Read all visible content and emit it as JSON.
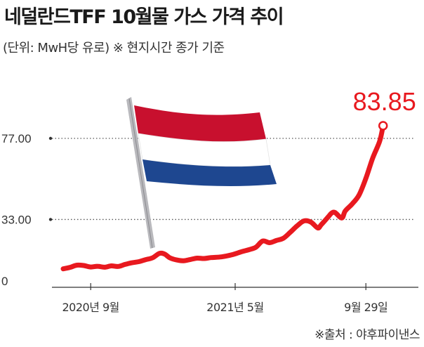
{
  "title": "네덜란드TFF 10월물 가스 가격 추이",
  "subtitle": "(단위: MwH당 유로)  ※ 현지시간 종가 기준",
  "source": "※출처 : 야후파이낸스",
  "colors": {
    "line": "#e8191f",
    "grid": "#555555",
    "axis": "#333333"
  },
  "chart_data": {
    "type": "line",
    "title": "네덜란드TFF 10월물 가스 가격 추이",
    "unit": "MwH당 유로",
    "y_ticks": [
      {
        "value": 0,
        "label": "0"
      },
      {
        "value": 33,
        "label": "33.00"
      },
      {
        "value": 77,
        "label": "77.00"
      }
    ],
    "ylim": [
      0,
      90
    ],
    "x_ticks": [
      {
        "x": 0.08,
        "label": "2020년 9월"
      },
      {
        "x": 0.5,
        "label": "2021년 5월"
      },
      {
        "x": 0.88,
        "label": "9월 29일"
      }
    ],
    "xlim": [
      0,
      1
    ],
    "grid": "dotted at labeled y ticks",
    "series": [
      {
        "points": [
          [
            0.0,
            6.2
          ],
          [
            0.02,
            7.0
          ],
          [
            0.04,
            8.2
          ],
          [
            0.06,
            8.0
          ],
          [
            0.08,
            7.2
          ],
          [
            0.1,
            7.6
          ],
          [
            0.12,
            7.1
          ],
          [
            0.14,
            7.8
          ],
          [
            0.16,
            7.5
          ],
          [
            0.18,
            8.6
          ],
          [
            0.2,
            9.5
          ],
          [
            0.22,
            10.1
          ],
          [
            0.24,
            11.2
          ],
          [
            0.26,
            12.2
          ],
          [
            0.28,
            14.6
          ],
          [
            0.295,
            14.2
          ],
          [
            0.31,
            12.2
          ],
          [
            0.33,
            11.0
          ],
          [
            0.35,
            10.6
          ],
          [
            0.37,
            11.3
          ],
          [
            0.39,
            12.0
          ],
          [
            0.41,
            11.8
          ],
          [
            0.43,
            12.3
          ],
          [
            0.46,
            12.7
          ],
          [
            0.49,
            13.8
          ],
          [
            0.52,
            15.6
          ],
          [
            0.54,
            16.6
          ],
          [
            0.56,
            17.9
          ],
          [
            0.58,
            21.3
          ],
          [
            0.6,
            20.4
          ],
          [
            0.62,
            21.6
          ],
          [
            0.64,
            22.8
          ],
          [
            0.66,
            26.0
          ],
          [
            0.68,
            29.5
          ],
          [
            0.7,
            32.2
          ],
          [
            0.72,
            31.6
          ],
          [
            0.74,
            28.4
          ],
          [
            0.75,
            30.1
          ],
          [
            0.77,
            34.3
          ],
          [
            0.78,
            36.4
          ],
          [
            0.79,
            36.8
          ],
          [
            0.81,
            33.8
          ],
          [
            0.82,
            37.6
          ],
          [
            0.84,
            41.4
          ],
          [
            0.86,
            46.2
          ],
          [
            0.88,
            55.3
          ],
          [
            0.9,
            66.4
          ],
          [
            0.92,
            75.4
          ],
          [
            0.93,
            83.85
          ]
        ]
      }
    ],
    "last_value_label": "83.85"
  }
}
